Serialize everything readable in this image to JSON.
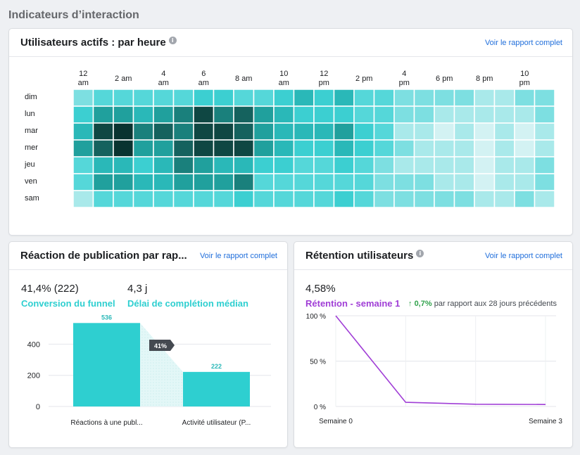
{
  "section_title": "Indicateurs d’interaction",
  "heatmap_card": {
    "title": "Utilisateurs actifs : par heure",
    "link": "Voir le rapport complet",
    "hour_labels": [
      {
        "line1": "12",
        "line2": "am"
      },
      {
        "line1": "2 am",
        "line2": ""
      },
      {
        "line1": "4",
        "line2": "am"
      },
      {
        "line1": "6",
        "line2": "am"
      },
      {
        "line1": "8 am",
        "line2": ""
      },
      {
        "line1": "10",
        "line2": "am"
      },
      {
        "line1": "12",
        "line2": "pm"
      },
      {
        "line1": "2 pm",
        "line2": ""
      },
      {
        "line1": "4",
        "line2": "pm"
      },
      {
        "line1": "6 pm",
        "line2": ""
      },
      {
        "line1": "8 pm",
        "line2": ""
      },
      {
        "line1": "10",
        "line2": "pm"
      }
    ],
    "days": [
      "dim",
      "lun",
      "mar",
      "mer",
      "jeu",
      "ven",
      "sam"
    ],
    "intensity": [
      [
        2,
        3,
        3,
        3,
        3,
        3,
        4,
        4,
        3,
        3,
        4,
        5,
        4,
        5,
        3,
        3,
        2,
        2,
        2,
        2,
        1,
        1,
        2,
        2
      ],
      [
        4,
        6,
        6,
        5,
        6,
        7,
        9,
        7,
        8,
        6,
        5,
        4,
        4,
        4,
        3,
        3,
        2,
        2,
        1,
        1,
        1,
        1,
        1,
        2
      ],
      [
        5,
        9,
        10,
        7,
        8,
        7,
        9,
        9,
        8,
        6,
        5,
        5,
        5,
        6,
        4,
        3,
        1,
        1,
        0,
        1,
        0,
        1,
        0,
        1
      ],
      [
        6,
        8,
        10,
        6,
        6,
        8,
        9,
        9,
        9,
        6,
        5,
        4,
        4,
        5,
        4,
        3,
        2,
        1,
        1,
        1,
        0,
        1,
        0,
        1
      ],
      [
        3,
        5,
        5,
        4,
        5,
        7,
        6,
        5,
        5,
        4,
        4,
        3,
        3,
        4,
        3,
        2,
        1,
        1,
        1,
        1,
        0,
        1,
        1,
        2
      ],
      [
        3,
        6,
        6,
        5,
        5,
        6,
        6,
        6,
        7,
        3,
        3,
        3,
        3,
        3,
        3,
        2,
        2,
        2,
        1,
        1,
        0,
        1,
        1,
        2
      ],
      [
        1,
        3,
        3,
        3,
        3,
        3,
        3,
        3,
        4,
        3,
        3,
        3,
        3,
        4,
        3,
        2,
        2,
        2,
        2,
        2,
        1,
        1,
        2,
        1
      ]
    ],
    "colors": [
      "#d3f2f3",
      "#a9e9ea",
      "#7ddfe1",
      "#55d7d9",
      "#3ccfd1",
      "#2ab8b8",
      "#20a09d",
      "#1a807c",
      "#15625e",
      "#0f4743",
      "#093330"
    ]
  },
  "funnel_card": {
    "title": "Réaction de publication par rap...",
    "link": "Voir le rapport complet",
    "metric1_value": "41,4% (222)",
    "metric1_label": "Conversion du funnel",
    "metric2_value": "4,3 j",
    "metric2_label": "Délai de complétion médian",
    "accent": "#2ecfd0",
    "chart_data": {
      "type": "bar",
      "categories": [
        "Réactions à une publ...",
        "Activité utilisateur (P..."
      ],
      "values": [
        536,
        222
      ],
      "yticks": [
        0,
        200,
        400
      ],
      "ylim": [
        0,
        560
      ],
      "conversion_badge": "41%",
      "grid": true
    }
  },
  "retention_card": {
    "title": "Rétention utilisateurs",
    "link": "Voir le rapport complet",
    "value": "4,58%",
    "label": "Rétention - semaine 1",
    "delta_arrow": "↑",
    "delta_value": "0,7%",
    "delta_text": "par rapport aux 28 jours précédents",
    "accent": "#a03ed6",
    "chart_data": {
      "type": "line",
      "x": [
        0,
        1,
        2,
        3
      ],
      "y": [
        100,
        4.58,
        2.5,
        2.2
      ],
      "ylim": [
        0,
        100
      ],
      "yticks": [
        "0 %",
        "50 %",
        "100 %"
      ],
      "xlabels_shown": [
        "Semaine 0",
        "Semaine 3"
      ],
      "grid": true
    }
  }
}
